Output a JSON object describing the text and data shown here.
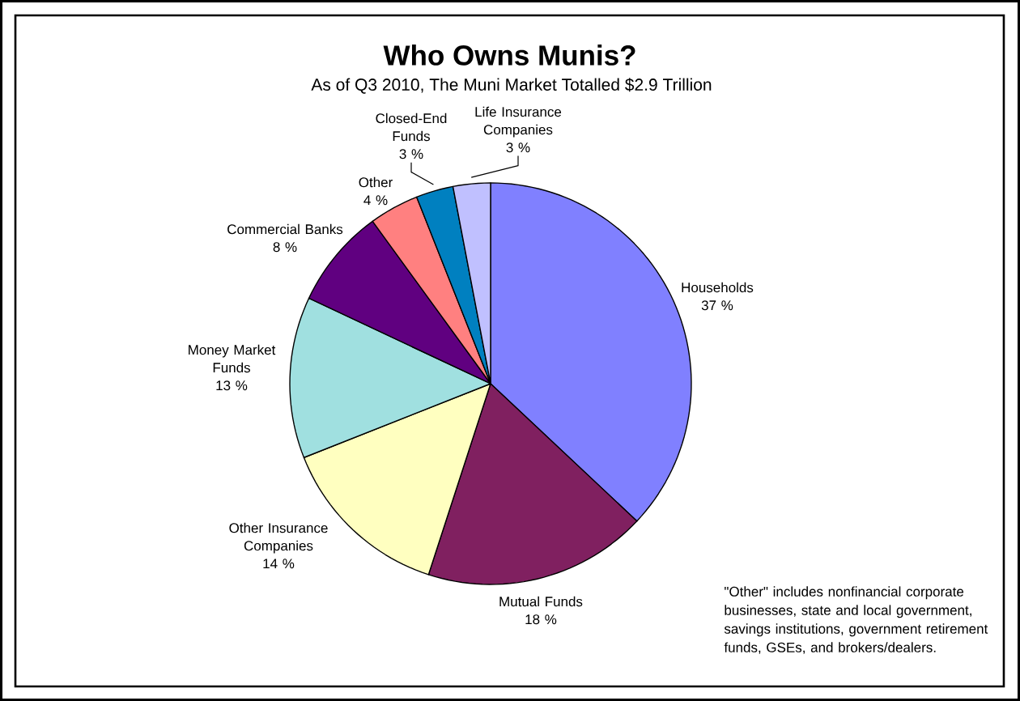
{
  "chart_data": {
    "type": "pie",
    "title": "Who Owns Munis?",
    "subtitle": "As of Q3 2010, The Muni Market Totalled $2.9 Trillion",
    "categories": [
      "Households",
      "Mutual Funds",
      "Other Insurance Companies",
      "Money Market Funds",
      "Commercial Banks",
      "Other",
      "Closed-End Funds",
      "Life Insurance Companies"
    ],
    "values": [
      37,
      18,
      14,
      13,
      8,
      4,
      3,
      3
    ],
    "value_labels": [
      "37 %",
      "18 %",
      "14 %",
      "13 %",
      "8 %",
      "4 %",
      "3 %",
      "3 %"
    ],
    "colors": [
      "#8080ff",
      "#802060",
      "#ffffc0",
      "#a0e0e0",
      "#600080",
      "#ff8080",
      "#0080c0",
      "#c0c0ff"
    ],
    "annotations": [
      "\"Other\" includes nonfinancial corporate businesses, state and local government, savings institutions, government retirement funds, GSEs, and brokers/dealers."
    ]
  }
}
